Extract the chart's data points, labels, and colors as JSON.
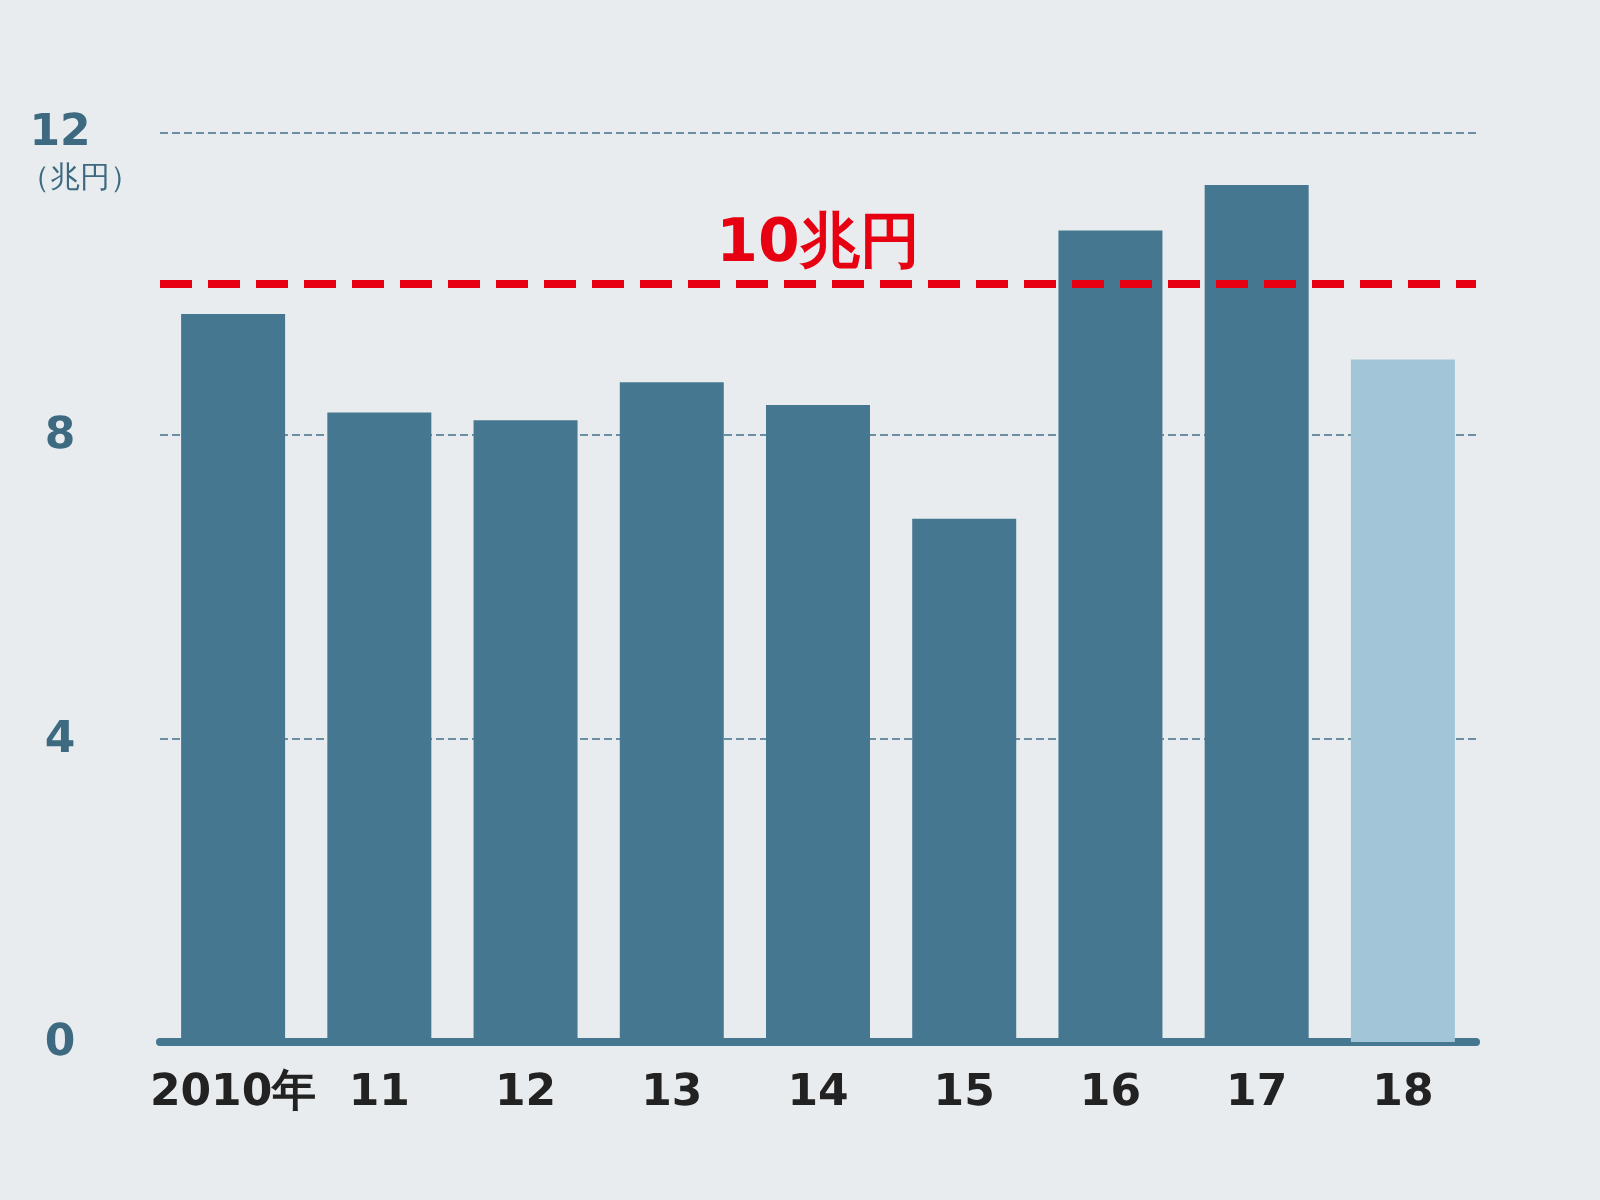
{
  "chart_data": {
    "type": "bar",
    "ylabel": "（兆円）",
    "categories": [
      "2010年",
      "11",
      "12",
      "13",
      "14",
      "15",
      "16",
      "17",
      "18"
    ],
    "values": [
      9.6,
      8.3,
      8.2,
      8.7,
      8.4,
      6.9,
      10.7,
      11.3,
      9.0
    ],
    "colors": [
      "#457890",
      "#457890",
      "#457890",
      "#457890",
      "#457890",
      "#457890",
      "#457890",
      "#457890",
      "#a3c5d8"
    ],
    "ylim": [
      0,
      12
    ],
    "yticks": [
      0,
      4,
      8,
      12
    ],
    "grid": "y",
    "ref_lines": [
      {
        "axis": "y",
        "value": 10,
        "label": "10兆円",
        "color": "#e60012",
        "line_style": "dashed"
      }
    ]
  }
}
